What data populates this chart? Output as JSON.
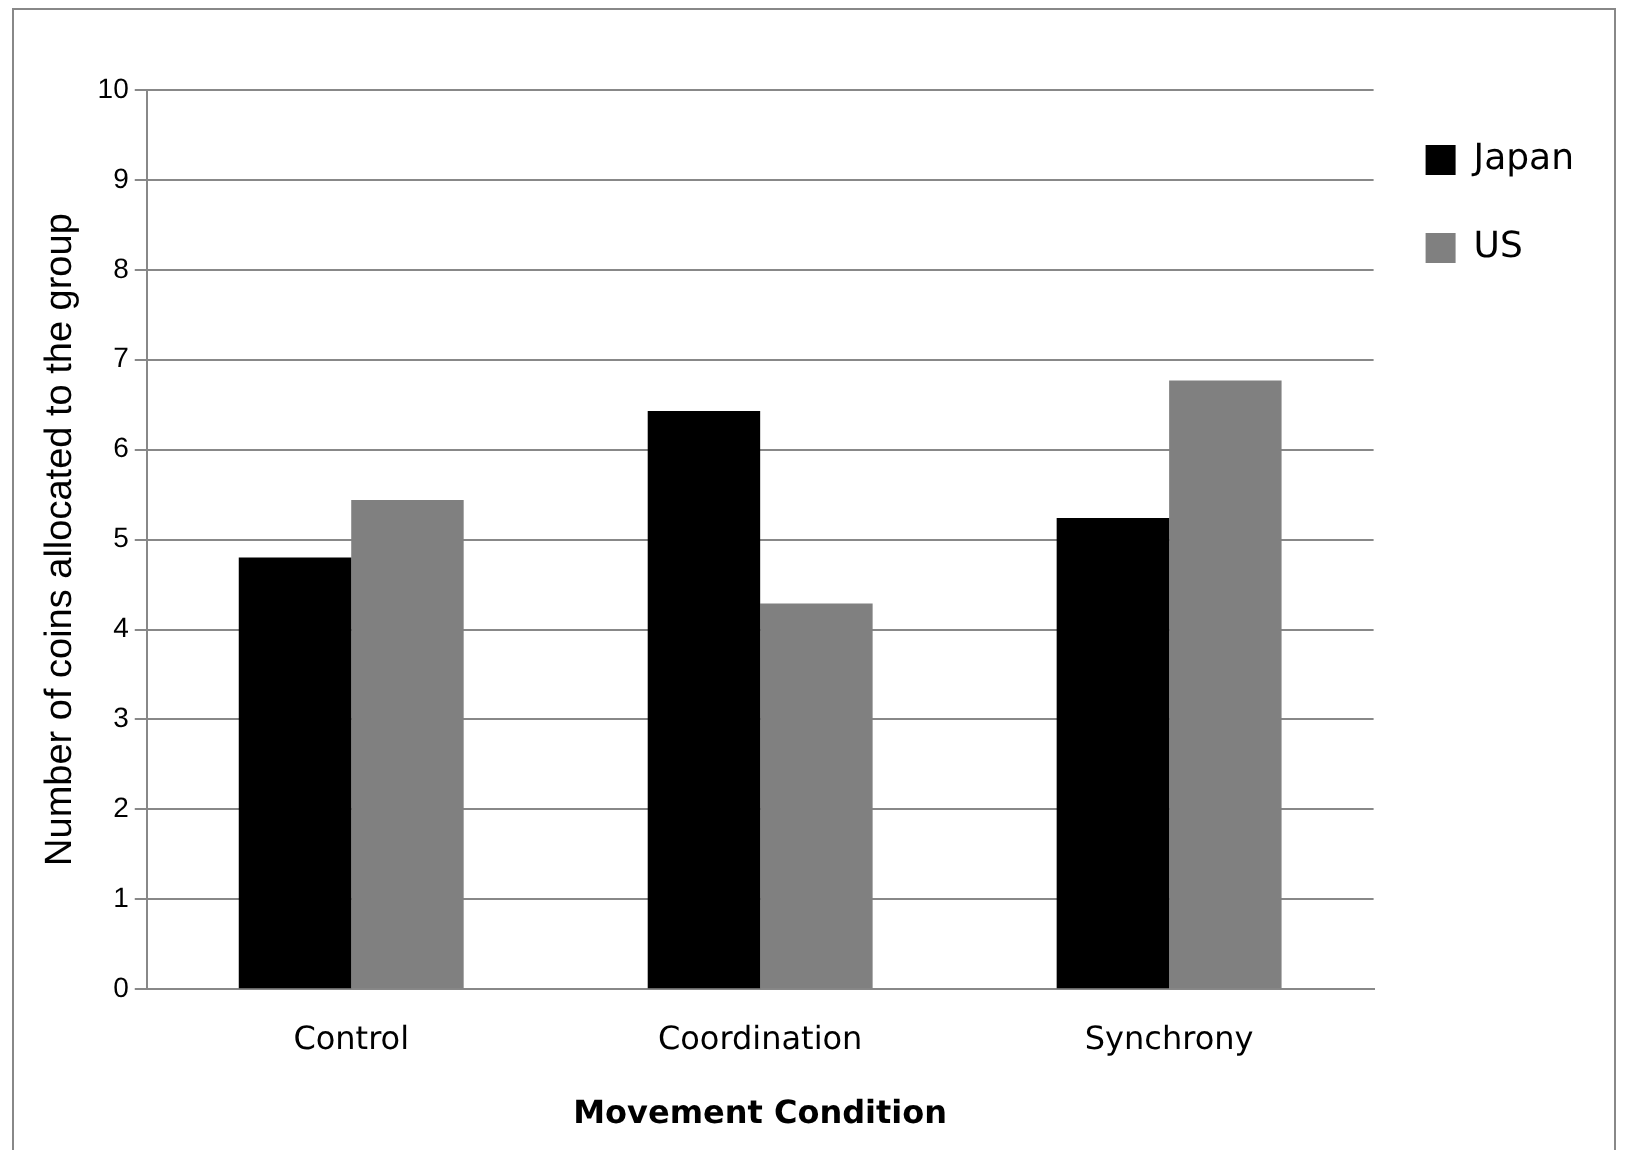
{
  "chart_data": {
    "type": "bar",
    "xlabel": "Movement Condition",
    "ylabel": "Number of coins allocated to the group",
    "categories": [
      "Control",
      "Coordination",
      "Synchrony"
    ],
    "series": [
      {
        "name": "Japan",
        "color": "#000000",
        "values": [
          4.8,
          6.43,
          5.24
        ]
      },
      {
        "name": "US",
        "color": "#808080",
        "values": [
          5.44,
          4.29,
          6.77
        ]
      }
    ],
    "ylim": [
      0,
      10
    ],
    "yticks": [
      0,
      1,
      2,
      3,
      4,
      5,
      6,
      7,
      8,
      9,
      10
    ],
    "grid": "y",
    "legend": "right"
  }
}
